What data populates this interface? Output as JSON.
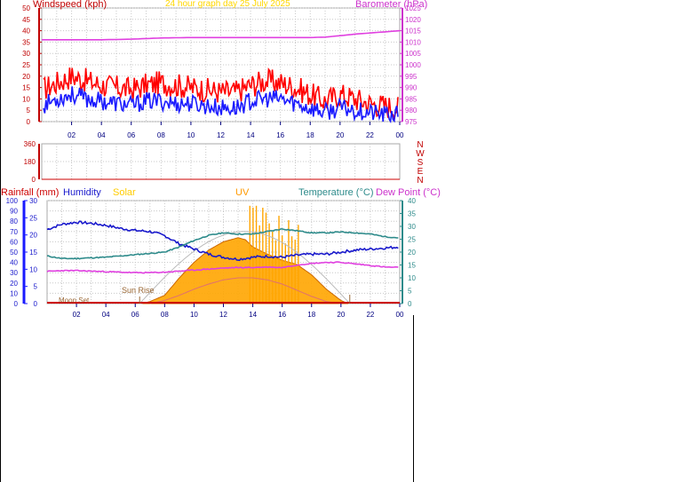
{
  "header": {
    "wind_title": "Windspeed (kph)",
    "date_title": "24 hour graph day 25 July 2025",
    "baro_title": "Barometer (hPa)"
  },
  "colors": {
    "wind_axis": "#c00000",
    "baro_axis": "#cc33cc",
    "gust": "#ff0000",
    "wind": "#1a1aff",
    "baro": "#e040e0",
    "time_tick": "#000080",
    "humidity": "#1a1acc",
    "temperature": "#2e8b8b",
    "dewpoint": "#e040e0",
    "solar_fill": "#ffa500",
    "solar_edge": "#cc6600",
    "uv": "#e07070",
    "rain": "#cc0000",
    "sun_curve": "#bbbbbb",
    "grid": "#c8c8c8"
  },
  "chart_data": [
    {
      "type": "line",
      "id": "wind-baro",
      "title": "24 hour graph day 25 July 2025",
      "x_ticks": [
        "02",
        "04",
        "06",
        "08",
        "10",
        "12",
        "14",
        "16",
        "18",
        "20",
        "22",
        "00"
      ],
      "y_left": {
        "label": "Windspeed (kph)",
        "ticks": [
          0,
          5,
          10,
          15,
          20,
          25,
          30,
          35,
          40,
          45,
          50
        ],
        "range": [
          0,
          50
        ]
      },
      "y_right": {
        "label": "Barometer (hPa)",
        "ticks": [
          975,
          980,
          985,
          990,
          995,
          1000,
          1005,
          1010,
          1015,
          1020,
          1025
        ],
        "range": [
          975,
          1025
        ]
      },
      "series": [
        {
          "name": "gust",
          "unit": "kph",
          "x": [
            0,
            1,
            2,
            3,
            4,
            5,
            6,
            7,
            8,
            9,
            10,
            11,
            12,
            13,
            14,
            15,
            16,
            17,
            18,
            19,
            20,
            21,
            22,
            23,
            24
          ],
          "values": [
            14,
            17,
            20,
            18,
            16,
            15,
            14,
            16,
            17,
            16,
            15,
            14,
            13,
            13,
            16,
            18,
            17,
            15,
            12,
            9,
            12,
            10,
            8,
            7,
            6
          ]
        },
        {
          "name": "wind",
          "unit": "kph",
          "x": [
            0,
            1,
            2,
            3,
            4,
            5,
            6,
            7,
            8,
            9,
            10,
            11,
            12,
            13,
            14,
            15,
            16,
            17,
            18,
            19,
            20,
            21,
            22,
            23,
            24
          ],
          "values": [
            7,
            10,
            12,
            10,
            9,
            8,
            7,
            9,
            9,
            8,
            8,
            7,
            6,
            6,
            9,
            10,
            10,
            8,
            6,
            4,
            6,
            5,
            4,
            3,
            3
          ]
        },
        {
          "name": "barometer",
          "unit": "hPa",
          "x": [
            0,
            2,
            4,
            6,
            8,
            10,
            12,
            14,
            16,
            18,
            19,
            20,
            21,
            22,
            23,
            24
          ],
          "values": [
            1011,
            1011,
            1011,
            1011.3,
            1011.8,
            1012,
            1012,
            1012,
            1012,
            1012,
            1012.2,
            1012.8,
            1013.5,
            1014,
            1014.5,
            1015
          ]
        }
      ]
    },
    {
      "type": "scatter",
      "id": "wind-direction",
      "x_ticks": [
        "02",
        "04",
        "06",
        "08",
        "10",
        "12",
        "14",
        "16",
        "18",
        "20",
        "22",
        "00"
      ],
      "y_left": {
        "ticks": [
          0,
          180,
          360
        ],
        "range": [
          0,
          360
        ]
      },
      "y_right": {
        "compass": [
          "N",
          "W",
          "S",
          "E",
          "N"
        ]
      },
      "series": []
    },
    {
      "type": "line",
      "id": "temp-hum-solar",
      "x_ticks": [
        "02",
        "04",
        "06",
        "08",
        "10",
        "12",
        "14",
        "16",
        "18",
        "20",
        "22",
        "00"
      ],
      "labels": {
        "rain": "Rainfall (mm)",
        "humidity": "Humidity",
        "solar": "Solar",
        "uv": "UV",
        "temperature": "Temperature (°C)",
        "dewpoint": "Dew Point (°C)"
      },
      "axis_humidity": {
        "ticks": [
          0,
          10,
          20,
          30,
          40,
          50,
          60,
          70,
          80,
          90,
          100
        ],
        "range": [
          0,
          100
        ]
      },
      "axis_rain": {
        "ticks": [
          0,
          5,
          10,
          15,
          20,
          25,
          30
        ],
        "range": [
          0,
          30
        ]
      },
      "axis_temp": {
        "ticks": [
          0,
          5,
          10,
          15,
          20,
          25,
          30,
          35,
          40
        ],
        "range": [
          0,
          40
        ]
      },
      "annotations": {
        "sunrise": "Sun Rise",
        "moonset": "Moon Set"
      },
      "sunrise_hour": 6.3,
      "sunset_hour": 20.6,
      "series": [
        {
          "name": "humidity",
          "unit": "%",
          "x": [
            0,
            1,
            2,
            3,
            4,
            5,
            6,
            7,
            8,
            9,
            10,
            11,
            12,
            13,
            14,
            15,
            16,
            17,
            18,
            19,
            20,
            21,
            22,
            23,
            24
          ],
          "values": [
            72,
            77,
            79,
            78,
            76,
            73,
            71,
            70,
            66,
            58,
            53,
            48,
            45,
            43,
            45,
            46,
            45,
            47,
            48,
            48,
            50,
            52,
            53,
            54,
            55
          ]
        },
        {
          "name": "temperature",
          "unit": "°C",
          "x": [
            0,
            1,
            2,
            3,
            4,
            5,
            6,
            7,
            8,
            9,
            10,
            11,
            12,
            13,
            14,
            15,
            16,
            17,
            18,
            19,
            20,
            21,
            22,
            23,
            24
          ],
          "values": [
            18.5,
            17.5,
            17.5,
            17.8,
            18.0,
            18.5,
            19.0,
            19.5,
            20.0,
            22.0,
            24.5,
            26.5,
            27.5,
            27.0,
            27.0,
            28.0,
            29.0,
            28.3,
            27.5,
            27.5,
            27.8,
            27.5,
            27.0,
            26.0,
            25.5
          ]
        },
        {
          "name": "dewpoint",
          "unit": "°C",
          "x": [
            0,
            1,
            2,
            3,
            4,
            5,
            6,
            7,
            8,
            9,
            10,
            11,
            12,
            13,
            14,
            15,
            16,
            17,
            18,
            19,
            20,
            21,
            22,
            23,
            24
          ],
          "values": [
            12.5,
            12.8,
            12.8,
            12.6,
            12.4,
            12.2,
            12.0,
            12.0,
            12.2,
            12.6,
            13.0,
            13.4,
            13.8,
            14.0,
            14.0,
            14.2,
            14.0,
            15.0,
            15.6,
            16.0,
            16.0,
            15.4,
            14.8,
            14.2,
            14.0
          ]
        },
        {
          "name": "solar",
          "unit": "% of axis",
          "x": [
            6.5,
            7,
            8,
            9,
            10,
            11,
            12,
            13,
            13.5,
            14,
            15,
            16,
            17,
            18,
            19,
            20,
            20.5
          ],
          "values": [
            0,
            2,
            8,
            25,
            40,
            52,
            60,
            64,
            62,
            55,
            48,
            42,
            38,
            28,
            14,
            3,
            0
          ]
        },
        {
          "name": "uv",
          "unit": "% of axis",
          "x": [
            7,
            8,
            9,
            10,
            11,
            12,
            13,
            14,
            15,
            16,
            17,
            18,
            19,
            20
          ],
          "values": [
            0,
            3,
            8,
            14,
            19,
            23,
            25,
            25,
            23,
            19,
            13,
            7,
            2,
            0
          ]
        },
        {
          "name": "rain",
          "unit": "mm",
          "x": [
            0,
            24
          ],
          "values": [
            0,
            0
          ]
        }
      ]
    }
  ]
}
